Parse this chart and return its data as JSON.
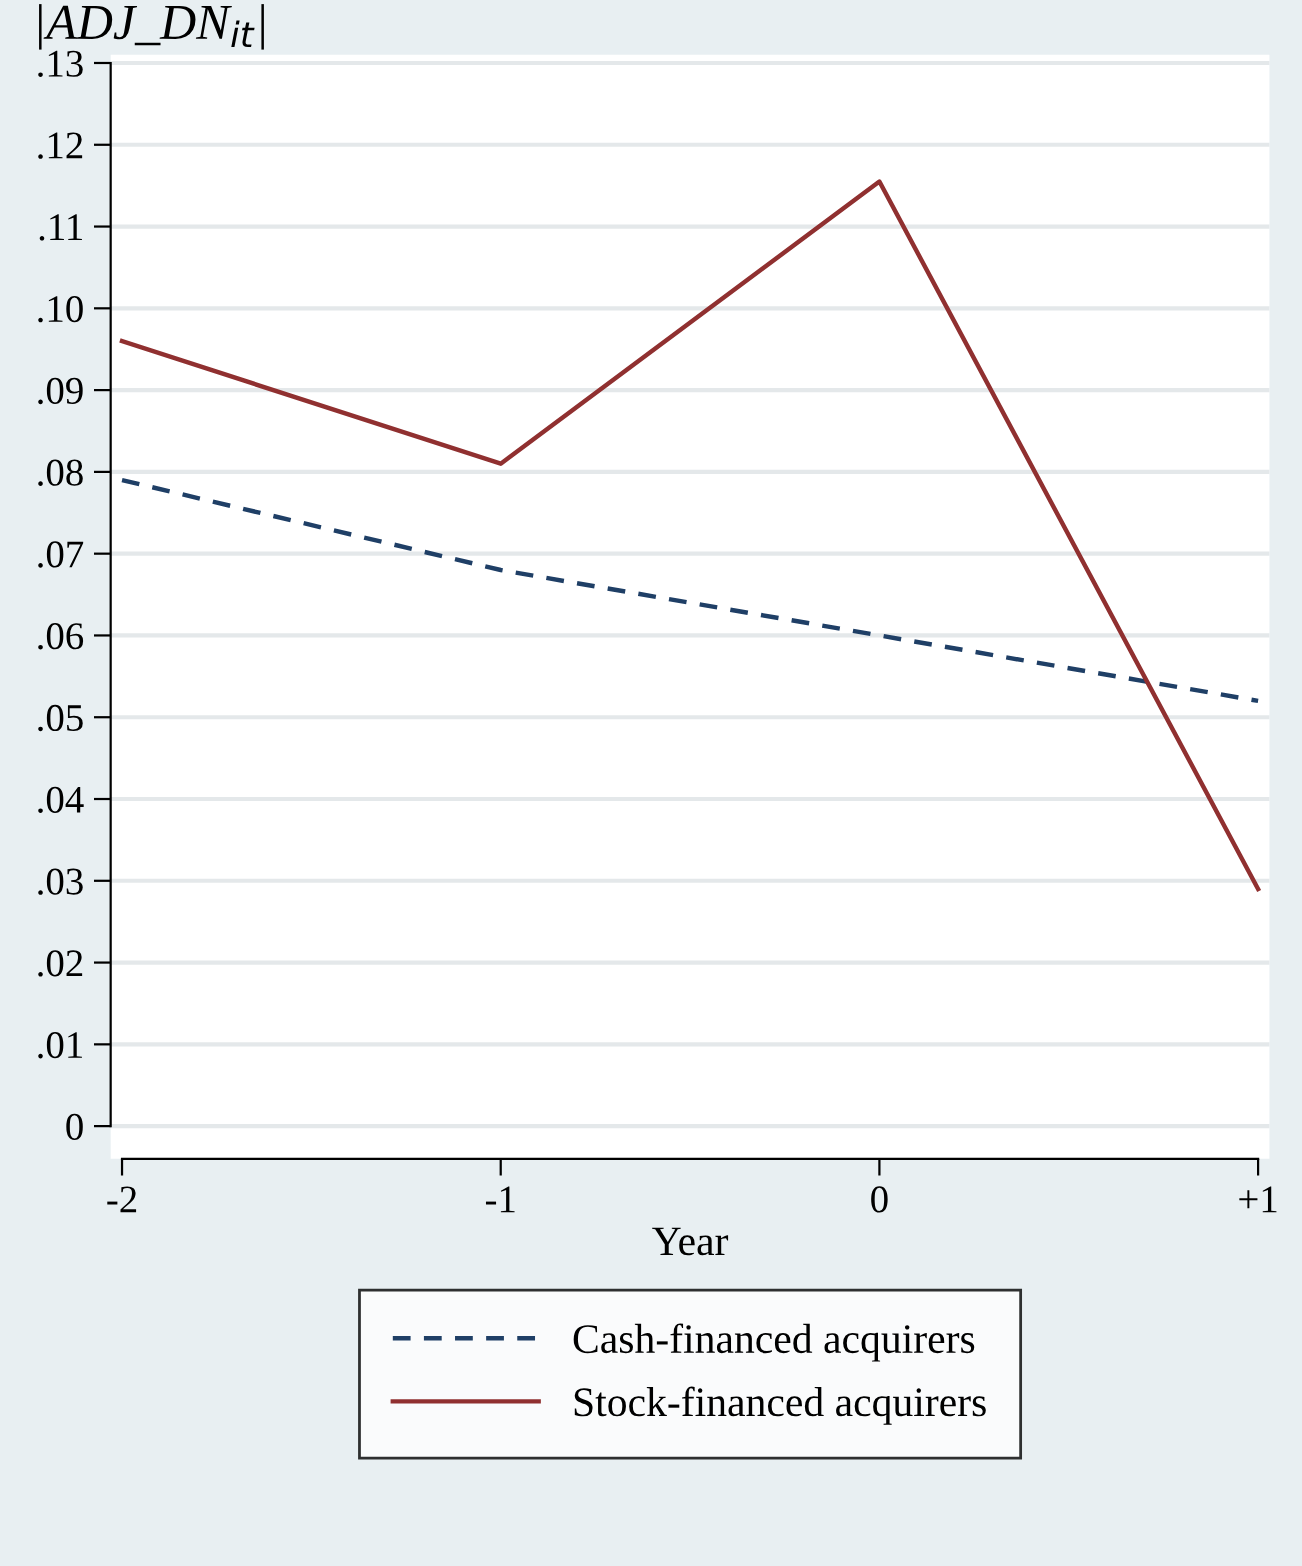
{
  "chart_data": {
    "type": "line",
    "ylabel": "|ADJ_DN$_{it}$|",
    "xlabel": "Year",
    "categories": [
      "-2",
      "-1",
      "0",
      "+1"
    ],
    "series": [
      {
        "name": "Cash-financed acquirers",
        "color": "#1f3f66",
        "line_style": "dashed",
        "values": [
          0.079,
          0.068,
          0.06,
          0.052
        ]
      },
      {
        "name": "Stock-financed acquirers",
        "color": "#903030",
        "line_style": "solid",
        "values": [
          0.096,
          0.081,
          0.1155,
          0.029
        ]
      }
    ],
    "ylim": [
      0,
      0.13
    ],
    "yticks": [
      {
        "value": 0,
        "label": "0"
      },
      {
        "value": 0.01,
        "label": ".01"
      },
      {
        "value": 0.02,
        "label": ".02"
      },
      {
        "value": 0.03,
        "label": ".03"
      },
      {
        "value": 0.04,
        "label": ".04"
      },
      {
        "value": 0.05,
        "label": ".05"
      },
      {
        "value": 0.06,
        "label": ".06"
      },
      {
        "value": 0.07,
        "label": ".07"
      },
      {
        "value": 0.08,
        "label": ".08"
      },
      {
        "value": 0.09,
        "label": ".09"
      },
      {
        "value": 0.1,
        "label": ".10"
      },
      {
        "value": 0.11,
        "label": ".11"
      },
      {
        "value": 0.12,
        "label": ".12"
      },
      {
        "value": 0.13,
        "label": ".13"
      }
    ],
    "grid": "y",
    "legend": "bottom",
    "marker": "none"
  }
}
